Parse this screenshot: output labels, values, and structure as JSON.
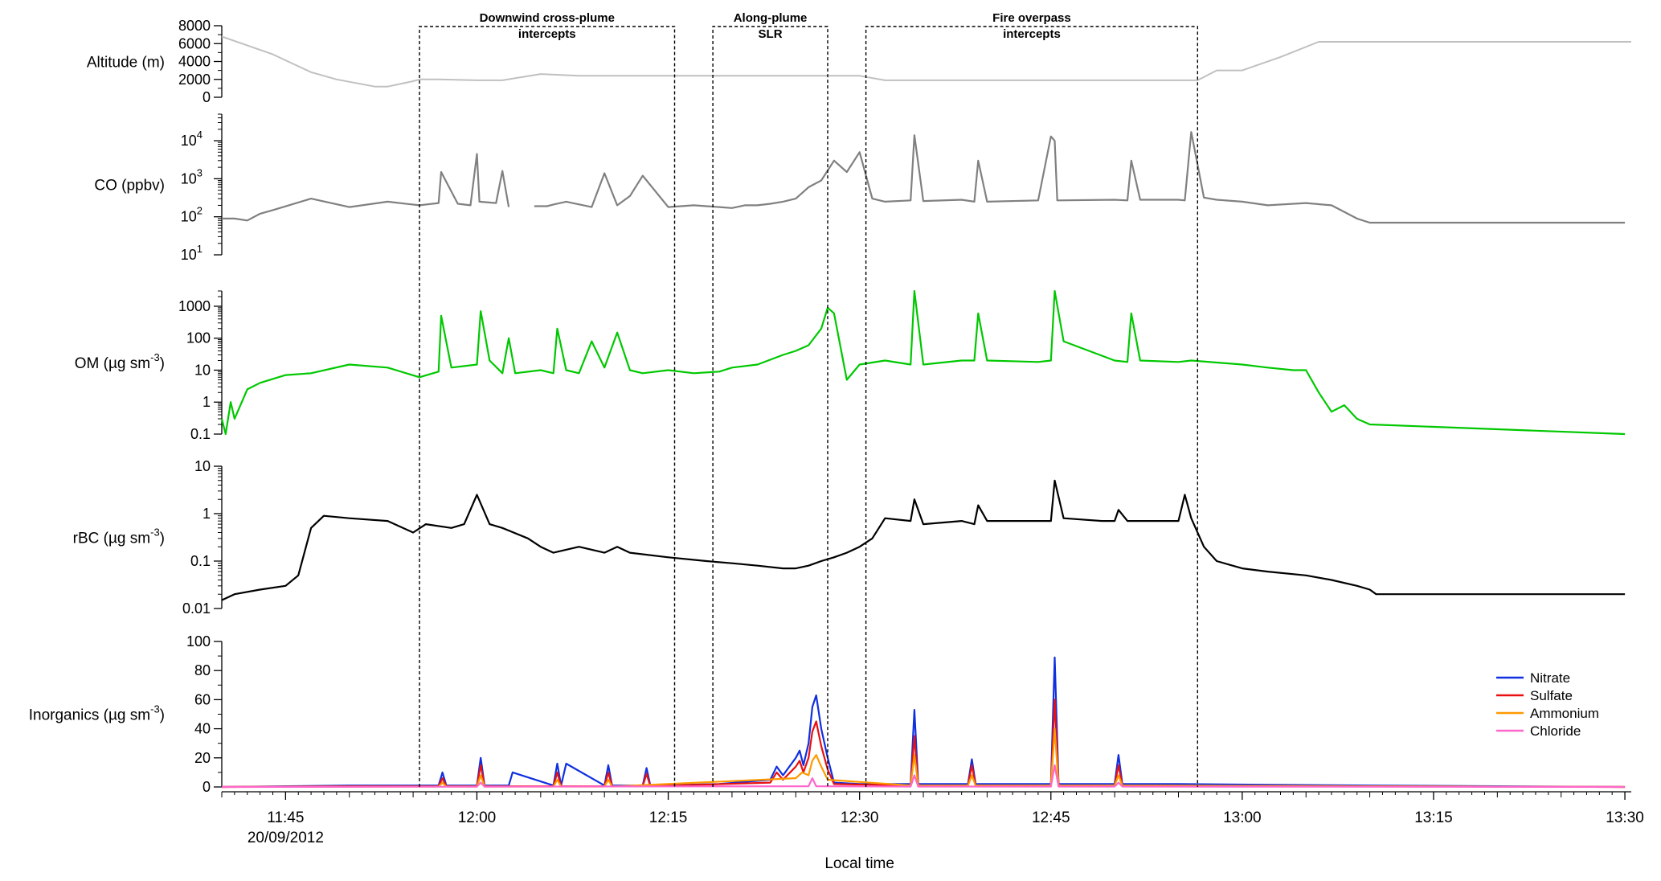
{
  "chart_data": {
    "type": "line",
    "x_axis": {
      "label": "Local time",
      "ticks": [
        {
          "t": 765,
          "label": "11:45",
          "sub": "20/09/2012"
        },
        {
          "t": 780,
          "label": "12:00"
        },
        {
          "t": 795,
          "label": "12:15"
        },
        {
          "t": 810,
          "label": "12:30"
        },
        {
          "t": 825,
          "label": "12:45"
        },
        {
          "t": 840,
          "label": "13:00"
        },
        {
          "t": 855,
          "label": "13:15"
        },
        {
          "t": 870,
          "label": "13:30"
        }
      ],
      "range_minutes": [
        760.0,
        870.5
      ]
    },
    "regions": [
      {
        "line1": "Downwind cross-plume",
        "line2": "intercepts",
        "start": 775.5,
        "end": 795.5
      },
      {
        "line1": "Along-plume",
        "line2": "SLR",
        "start": 798.5,
        "end": 807.5
      },
      {
        "line1": "Fire overpass",
        "line2": "intercepts",
        "start": 810.5,
        "end": 836.5
      }
    ],
    "panels": [
      {
        "id": "altitude",
        "ylabel": "Altitude (m)",
        "scale": "linear",
        "ylim": [
          0,
          8000
        ],
        "color": "#c0c0c0",
        "ticks": [
          {
            "v": 0,
            "l": "0"
          },
          {
            "v": 2000,
            "l": "2000"
          },
          {
            "v": 4000,
            "l": "4000"
          },
          {
            "v": 6000,
            "l": "6000"
          },
          {
            "v": 8000,
            "l": "8000"
          }
        ],
        "series": [
          {
            "x": [
              760,
              764,
              767,
              769,
              772,
              773,
              775,
              775.5,
              777,
              780,
              782,
              785,
              788,
              790,
              795,
              800,
              805,
              810,
              812,
              815,
              820,
              825,
              830,
              835,
              836.5,
              838,
              840,
              843,
              846,
              870,
              870.5
            ],
            "y": [
              6800,
              4800,
              2800,
              2000,
              1200,
              1200,
              1800,
              2000,
              2000,
              1900,
              1900,
              2600,
              2400,
              2400,
              2400,
              2400,
              2400,
              2400,
              1900,
              1900,
              1900,
              1900,
              1900,
              1900,
              1900,
              3000,
              3000,
              4500,
              6200,
              6200,
              6200
            ]
          }
        ]
      },
      {
        "id": "co",
        "ylabel": "CO (ppbv)",
        "scale": "log",
        "ylim": [
          10,
          50000
        ],
        "color": "#808080",
        "ticks": [
          {
            "v": 10,
            "l": "10",
            "sup": "1"
          },
          {
            "v": 100,
            "l": "10",
            "sup": "2"
          },
          {
            "v": 1000,
            "l": "10",
            "sup": "3"
          },
          {
            "v": 10000,
            "l": "10",
            "sup": "4"
          }
        ],
        "series": [
          {
            "x": [
              760,
              761,
              762,
              763,
              764,
              767,
              770,
              773,
              775.5,
              777,
              777.2,
              778.5,
              779.5,
              780,
              780.2,
              781.5,
              782,
              782.5,
              783.5,
              784,
              784.5,
              785.5,
              786,
              787,
              789,
              790,
              791,
              792,
              793,
              795,
              797,
              799,
              800,
              801,
              802,
              803,
              804,
              805,
              806,
              807,
              808,
              809,
              810,
              811,
              812,
              814,
              814.3,
              815,
              818,
              819,
              819.3,
              820,
              824,
              825,
              825.3,
              825.5,
              830,
              831,
              831.3,
              832,
              835,
              835.5,
              836,
              837,
              838,
              840,
              842,
              845,
              847,
              849,
              850,
              870
            ],
            "y": [
              90,
              90,
              80,
              120,
              150,
              300,
              180,
              250,
              200,
              230,
              1500,
              220,
              200,
              4500,
              250,
              230,
              1600,
              180,
              null,
              null,
              190,
              190,
              210,
              250,
              180,
              1400,
              200,
              350,
              1200,
              180,
              200,
              180,
              170,
              200,
              200,
              220,
              250,
              300,
              600,
              900,
              3000,
              1500,
              5000,
              300,
              250,
              270,
              14000,
              260,
              280,
              250,
              3000,
              250,
              270,
              13000,
              10000,
              270,
              280,
              270,
              3000,
              280,
              280,
              270,
              17000,
              320,
              280,
              250,
              200,
              230,
              200,
              90,
              70,
              70
            ]
          }
        ]
      },
      {
        "id": "om",
        "ylabel": "OM (µg sm-3)",
        "ylabel_main": "OM (µg sm",
        "ylabel_sup": "-3",
        "ylabel_end": ")",
        "scale": "log",
        "ylim": [
          0.1,
          3000
        ],
        "color": "#00c800",
        "ticks": [
          {
            "v": 0.1,
            "l": "0.1"
          },
          {
            "v": 1,
            "l": "1"
          },
          {
            "v": 10,
            "l": "10"
          },
          {
            "v": 100,
            "l": "100"
          },
          {
            "v": 1000,
            "l": "1000"
          }
        ],
        "series": [
          {
            "x": [
              760,
              760.3,
              760.7,
              761,
              762,
              763,
              765,
              767,
              770,
              773,
              775.5,
              777,
              777.2,
              778,
              780,
              780.3,
              781,
              782,
              782.5,
              783,
              785,
              786,
              786.3,
              787,
              788,
              789,
              790,
              791,
              792,
              793,
              795,
              797,
              799,
              800,
              802,
              804,
              805,
              806,
              807,
              807.5,
              808,
              809,
              810,
              812,
              814,
              814.3,
              815,
              818,
              819,
              819.3,
              820,
              824,
              825,
              825.3,
              826,
              830,
              831,
              831.3,
              832,
              835,
              836,
              840,
              842,
              844,
              845,
              846,
              847,
              848,
              849,
              850,
              870
            ],
            "y": [
              0.3,
              0.1,
              1.0,
              0.3,
              2.5,
              4,
              7,
              8,
              15,
              12,
              6,
              9,
              500,
              12,
              15,
              700,
              20,
              8,
              100,
              8,
              10,
              8,
              200,
              10,
              8,
              80,
              12,
              150,
              10,
              8,
              10,
              8,
              9,
              12,
              15,
              30,
              40,
              60,
              200,
              900,
              600,
              5,
              15,
              20,
              15,
              3000,
              15,
              20,
              20,
              600,
              20,
              18,
              20,
              3000,
              80,
              20,
              18,
              600,
              20,
              18,
              20,
              15,
              12,
              10,
              10,
              2,
              0.5,
              0.8,
              0.3,
              0.2,
              0.1
            ]
          }
        ]
      },
      {
        "id": "rbc",
        "ylabel": "rBC (µg sm-3)",
        "ylabel_main": "rBC (µg sm",
        "ylabel_sup": "-3",
        "ylabel_end": ")",
        "scale": "log",
        "ylim": [
          0.01,
          10
        ],
        "color": "#000000",
        "ticks": [
          {
            "v": 0.01,
            "l": "0.01"
          },
          {
            "v": 0.1,
            "l": "0.1"
          },
          {
            "v": 1,
            "l": "1"
          },
          {
            "v": 10,
            "l": "10"
          }
        ],
        "series": [
          {
            "x": [
              760,
              761,
              763,
              765,
              766,
              767,
              768,
              770,
              773,
              775,
              776,
              778,
              779,
              780,
              781,
              782,
              784,
              785,
              786,
              788,
              790,
              791,
              792,
              795,
              798,
              800,
              802,
              804,
              805,
              806,
              807,
              808,
              809,
              810,
              811,
              812,
              814,
              814.3,
              815,
              818,
              819,
              819.3,
              820,
              824,
              825,
              825.3,
              826,
              829,
              830,
              830.3,
              831,
              835,
              835.5,
              836,
              837,
              838,
              840,
              842,
              845,
              847,
              849,
              850,
              850.5,
              870
            ],
            "y": [
              0.015,
              0.02,
              0.025,
              0.03,
              0.05,
              0.5,
              0.9,
              0.8,
              0.7,
              0.4,
              0.6,
              0.5,
              0.6,
              2.5,
              0.6,
              0.5,
              0.3,
              0.2,
              0.15,
              0.2,
              0.15,
              0.2,
              0.15,
              0.12,
              0.1,
              0.09,
              0.08,
              0.07,
              0.07,
              0.08,
              0.1,
              0.12,
              0.15,
              0.2,
              0.3,
              0.8,
              0.7,
              2,
              0.6,
              0.7,
              0.6,
              1.5,
              0.7,
              0.7,
              0.7,
              5,
              0.8,
              0.7,
              0.7,
              1.2,
              0.7,
              0.7,
              2.5,
              0.8,
              0.2,
              0.1,
              0.07,
              0.06,
              0.05,
              0.04,
              0.03,
              0.025,
              0.02,
              0.02
            ]
          }
        ]
      },
      {
        "id": "inorg",
        "ylabel": "Inorganics (µg sm-3)",
        "ylabel_main": "Inorganics (µg sm",
        "ylabel_sup": "-3",
        "ylabel_end": ")",
        "scale": "linear",
        "ylim": [
          0,
          100
        ],
        "ticks": [
          {
            "v": 0,
            "l": "0"
          },
          {
            "v": 20,
            "l": "20"
          },
          {
            "v": 40,
            "l": "40"
          },
          {
            "v": 60,
            "l": "60"
          },
          {
            "v": 80,
            "l": "80"
          },
          {
            "v": 100,
            "l": "100"
          }
        ],
        "legend": {
          "position": "right"
        },
        "series": [
          {
            "name": "Nitrate",
            "color": "#1030e0",
            "x": [
              760,
              770,
              777,
              777.3,
              777.6,
              780,
              780.3,
              780.6,
              782.5,
              782.8,
              786,
              786.3,
              786.6,
              787,
              790,
              790.3,
              790.6,
              793,
              793.3,
              793.6,
              799,
              803,
              803.5,
              804,
              805,
              805.3,
              805.6,
              806,
              806.3,
              806.6,
              807,
              807.5,
              808,
              810,
              814,
              814.3,
              814.6,
              818.5,
              818.8,
              819.1,
              825,
              825.3,
              825.6,
              830,
              830.3,
              830.6,
              835,
              850,
              870
            ],
            "y": [
              0,
              1,
              1,
              10,
              1,
              1,
              20,
              1,
              1,
              10,
              1,
              16,
              1,
              16,
              1,
              15,
              1,
              1,
              13,
              1,
              2,
              5,
              14,
              8,
              20,
              25,
              15,
              30,
              55,
              63,
              40,
              20,
              3,
              2,
              2,
              53,
              2,
              2,
              19,
              2,
              2,
              89,
              2,
              2,
              22,
              2,
              2,
              1,
              0
            ]
          },
          {
            "name": "Sulfate",
            "color": "#e81010",
            "x": [
              760,
              770,
              777,
              777.3,
              777.6,
              780,
              780.3,
              780.6,
              786,
              786.3,
              786.6,
              790,
              790.3,
              790.6,
              793,
              793.3,
              793.6,
              803,
              803.5,
              804,
              805,
              805.3,
              805.6,
              806,
              806.3,
              806.6,
              807,
              807.5,
              808,
              814,
              814.3,
              814.6,
              818.5,
              818.8,
              819.1,
              825,
              825.3,
              825.6,
              830,
              830.3,
              830.6,
              870
            ],
            "y": [
              0,
              0.5,
              0.5,
              6,
              0.5,
              0.5,
              15,
              0.5,
              0.5,
              10,
              0.5,
              0.5,
              10,
              0.5,
              0.5,
              9,
              0.5,
              3,
              10,
              5,
              14,
              18,
              10,
              20,
              38,
              45,
              28,
              12,
              2,
              1,
              35,
              1,
              1,
              15,
              1,
              1,
              60,
              1,
              1,
              15,
              1,
              0
            ]
          },
          {
            "name": "Ammonium",
            "color": "#ff9900",
            "x": [
              760,
              777,
              777.3,
              777.6,
              780,
              780.3,
              780.6,
              786,
              786.3,
              786.6,
              790,
              790.3,
              790.6,
              805,
              805.5,
              806,
              806.3,
              806.6,
              807,
              807.5,
              814,
              814.3,
              814.6,
              818.5,
              818.8,
              819.1,
              825,
              825.3,
              825.6,
              830,
              830.3,
              830.6,
              870
            ],
            "y": [
              0,
              0.3,
              3,
              0.3,
              0.3,
              8,
              0.3,
              0.3,
              5,
              0.3,
              0.3,
              5,
              0.3,
              6,
              10,
              8,
              18,
              22,
              14,
              5,
              1,
              22,
              1,
              1,
              8,
              1,
              1,
              40,
              1,
              1,
              8,
              1,
              0
            ]
          },
          {
            "name": "Chloride",
            "color": "#ff66cc",
            "x": [
              760,
              780,
              780.3,
              780.6,
              806,
              806.3,
              806.6,
              814,
              814.3,
              814.6,
              825,
              825.3,
              825.6,
              830,
              830.3,
              830.6,
              870
            ],
            "y": [
              0,
              0.2,
              3,
              0.2,
              0.5,
              6,
              0.5,
              0.3,
              8,
              0.3,
              0.3,
              15,
              0.3,
              0.3,
              3,
              0.3,
              0
            ]
          }
        ]
      }
    ]
  }
}
